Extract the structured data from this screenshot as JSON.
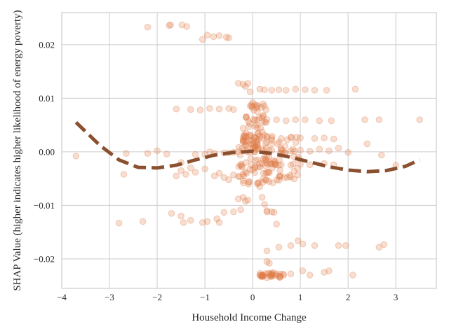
{
  "chart_data": {
    "type": "scatter",
    "xlabel": "Household Income Change",
    "ylabel": "SHAP Value (higher indicates higher likelihood of energy poverty)",
    "xlim": [
      -4.0,
      3.85
    ],
    "ylim": [
      -0.0255,
      0.026
    ],
    "xticks": [
      -4,
      -3,
      -2,
      -1,
      0,
      1,
      2,
      3
    ],
    "yticks": [
      -0.02,
      -0.01,
      0.0,
      0.01,
      0.02
    ],
    "xtick_labels": [
      "−4",
      "−3",
      "−2",
      "−1",
      "0",
      "1",
      "2",
      "3"
    ],
    "ytick_labels": [
      "−0.02",
      "−0.01",
      "0.00",
      "0.01",
      "0.02"
    ],
    "grid": true,
    "colors": {
      "points": "#e07b48",
      "trend": "#8b5030",
      "grid": "#cccccc"
    },
    "scatter_points": [
      [
        -2.2,
        0.0233
      ],
      [
        -1.75,
        0.0236
      ],
      [
        -1.72,
        0.0237
      ],
      [
        -1.48,
        0.0237
      ],
      [
        -1.38,
        0.0234
      ],
      [
        -1.05,
        0.021
      ],
      [
        -0.95,
        0.0218
      ],
      [
        -0.82,
        0.0215
      ],
      [
        -0.7,
        0.0217
      ],
      [
        -0.55,
        0.0214
      ],
      [
        -0.5,
        0.0213
      ],
      [
        -3.7,
        -0.0008
      ],
      [
        -2.8,
        -0.0133
      ],
      [
        -2.3,
        -0.013
      ],
      [
        -2.7,
        -0.0042
      ],
      [
        -2.65,
        -0.0003
      ],
      [
        -2.2,
        -0.0003
      ],
      [
        -2.0,
        0.0002
      ],
      [
        -1.8,
        -0.0004
      ],
      [
        -1.5,
        -0.002
      ],
      [
        -1.2,
        -0.0005
      ],
      [
        -1.6,
        0.008
      ],
      [
        -1.3,
        0.0079
      ],
      [
        -1.1,
        0.0078
      ],
      [
        -0.9,
        0.0081
      ],
      [
        -0.7,
        0.008
      ],
      [
        -0.5,
        0.0081
      ],
      [
        -0.4,
        0.0079
      ],
      [
        -1.7,
        -0.0115
      ],
      [
        -1.5,
        -0.012
      ],
      [
        -1.45,
        -0.0132
      ],
      [
        -1.3,
        -0.0128
      ],
      [
        -1.05,
        -0.0132
      ],
      [
        -0.95,
        -0.013
      ],
      [
        -0.75,
        -0.0125
      ],
      [
        -0.7,
        -0.0132
      ],
      [
        -0.6,
        -0.0113
      ],
      [
        -0.4,
        -0.0112
      ],
      [
        -0.25,
        -0.0108
      ],
      [
        -1.6,
        -0.0045
      ],
      [
        -1.5,
        -0.0035
      ],
      [
        -1.4,
        -0.0042
      ],
      [
        -1.3,
        -0.003
      ],
      [
        -1.2,
        -0.0038
      ],
      [
        -1.0,
        -0.0032
      ],
      [
        -0.8,
        -0.0045
      ],
      [
        -0.7,
        -0.004
      ],
      [
        -0.6,
        -0.0048
      ],
      [
        -0.5,
        -0.0052
      ],
      [
        -0.4,
        -0.0043
      ],
      [
        -0.3,
        -0.0046
      ],
      [
        -0.2,
        -0.0041
      ],
      [
        -1.0,
        -0.0005
      ],
      [
        -0.9,
        0.0
      ],
      [
        -0.8,
        -0.0003
      ],
      [
        -0.6,
        -0.0002
      ],
      [
        -0.5,
        -0.0002
      ],
      [
        -0.4,
        -0.0001
      ],
      [
        -0.3,
        0.0
      ],
      [
        -0.2,
        0.0002
      ],
      [
        -0.3,
        0.0128
      ],
      [
        -0.2,
        0.0126
      ],
      [
        -0.15,
        0.0122
      ],
      [
        -0.1,
        0.0128
      ],
      [
        -0.05,
        0.0112
      ],
      [
        -0.1,
        -0.009
      ],
      [
        -0.2,
        -0.0085
      ],
      [
        -0.3,
        -0.0088
      ],
      [
        -0.15,
        -0.0092
      ],
      [
        0.0,
        0.0092
      ],
      [
        0.05,
        0.0088
      ],
      [
        0.1,
        0.0085
      ],
      [
        0.1,
        0.0075
      ],
      [
        0.05,
        0.006
      ],
      [
        0.1,
        0.0045
      ],
      [
        0.15,
        0.003
      ],
      [
        0.1,
        0.0015
      ],
      [
        0.05,
        0.0
      ],
      [
        0.1,
        -0.0015
      ],
      [
        0.05,
        -0.003
      ],
      [
        0.1,
        -0.006
      ],
      [
        0.15,
        -0.0065
      ],
      [
        0.2,
        -0.0085
      ],
      [
        0.25,
        -0.0098
      ],
      [
        0.3,
        -0.011
      ],
      [
        0.15,
        0.0117
      ],
      [
        0.25,
        0.0116
      ],
      [
        0.4,
        0.0115
      ],
      [
        0.55,
        0.0116
      ],
      [
        0.7,
        0.0115
      ],
      [
        0.9,
        0.0117
      ],
      [
        1.1,
        0.0116
      ],
      [
        1.3,
        0.0115
      ],
      [
        1.55,
        0.0115
      ],
      [
        2.15,
        0.0117
      ],
      [
        0.3,
        0.006
      ],
      [
        0.5,
        0.006
      ],
      [
        0.7,
        0.0058
      ],
      [
        0.9,
        0.006
      ],
      [
        1.1,
        0.006
      ],
      [
        1.4,
        0.0058
      ],
      [
        1.65,
        0.0058
      ],
      [
        2.35,
        0.006
      ],
      [
        2.65,
        0.006
      ],
      [
        3.5,
        0.006
      ],
      [
        0.2,
        0.0027
      ],
      [
        0.4,
        0.0025
      ],
      [
        0.6,
        0.0025
      ],
      [
        0.8,
        0.0027
      ],
      [
        1.0,
        0.0026
      ],
      [
        1.3,
        0.0025
      ],
      [
        1.5,
        0.0026
      ],
      [
        1.7,
        0.0024
      ],
      [
        0.2,
        0.0005
      ],
      [
        0.4,
        0.0003
      ],
      [
        0.6,
        0.0004
      ],
      [
        0.8,
        0.0002
      ],
      [
        1.0,
        0.0003
      ],
      [
        1.2,
        0.0001
      ],
      [
        1.4,
        0.0005
      ],
      [
        1.6,
        0.0002
      ],
      [
        1.8,
        0.0007
      ],
      [
        2.0,
        -0.0001
      ],
      [
        2.4,
        0.0015
      ],
      [
        2.7,
        -0.0006
      ],
      [
        0.2,
        -0.0022
      ],
      [
        0.4,
        -0.0023
      ],
      [
        0.6,
        -0.0024
      ],
      [
        0.8,
        -0.0025
      ],
      [
        1.0,
        -0.0023
      ],
      [
        1.2,
        -0.0024
      ],
      [
        1.5,
        -0.0022
      ],
      [
        1.7,
        -0.0024
      ],
      [
        3.0,
        -0.0025
      ],
      [
        0.3,
        -0.0112
      ],
      [
        0.4,
        -0.0112
      ],
      [
        0.45,
        -0.0113
      ],
      [
        0.5,
        -0.0135
      ],
      [
        0.3,
        -0.0185
      ],
      [
        0.55,
        -0.0178
      ],
      [
        0.8,
        -0.0175
      ],
      [
        0.95,
        -0.0166
      ],
      [
        1.05,
        -0.0172
      ],
      [
        1.3,
        -0.0175
      ],
      [
        1.8,
        -0.0175
      ],
      [
        1.95,
        -0.0175
      ],
      [
        2.65,
        -0.0178
      ],
      [
        2.75,
        -0.0173
      ],
      [
        0.3,
        -0.0205
      ],
      [
        0.35,
        -0.0208
      ],
      [
        0.3,
        -0.0235
      ],
      [
        0.5,
        -0.0228
      ],
      [
        0.65,
        -0.023
      ],
      [
        0.8,
        -0.0228
      ],
      [
        1.05,
        -0.0222
      ],
      [
        1.2,
        -0.023
      ],
      [
        1.5,
        -0.0225
      ],
      [
        1.6,
        -0.0222
      ],
      [
        2.1,
        -0.023
      ]
    ],
    "dense_clusters": [
      {
        "x_range": [
          -0.3,
          1.0
        ],
        "y_range": [
          -0.006,
          0.003
        ],
        "count": 120
      },
      {
        "x_range": [
          -0.2,
          0.3
        ],
        "y_range": [
          0.0,
          0.009
        ],
        "count": 60
      },
      {
        "x_range": [
          0.15,
          0.7
        ],
        "y_range": [
          -0.0235,
          -0.0225
        ],
        "count": 30
      }
    ],
    "trend_line": {
      "style": "dashed",
      "points": [
        [
          -3.7,
          0.0055
        ],
        [
          -3.2,
          0.0012
        ],
        [
          -2.8,
          -0.0015
        ],
        [
          -2.4,
          -0.0029
        ],
        [
          -2.0,
          -0.003
        ],
        [
          -1.6,
          -0.0025
        ],
        [
          -1.2,
          -0.0015
        ],
        [
          -0.8,
          -0.0006
        ],
        [
          -0.4,
          -0.0001
        ],
        [
          0.0,
          0.0001
        ],
        [
          0.4,
          -0.0003
        ],
        [
          0.8,
          -0.001
        ],
        [
          1.2,
          -0.0019
        ],
        [
          1.6,
          -0.0028
        ],
        [
          2.0,
          -0.0034
        ],
        [
          2.4,
          -0.0037
        ],
        [
          2.8,
          -0.0035
        ],
        [
          3.2,
          -0.0027
        ],
        [
          3.5,
          -0.0015
        ]
      ]
    }
  }
}
